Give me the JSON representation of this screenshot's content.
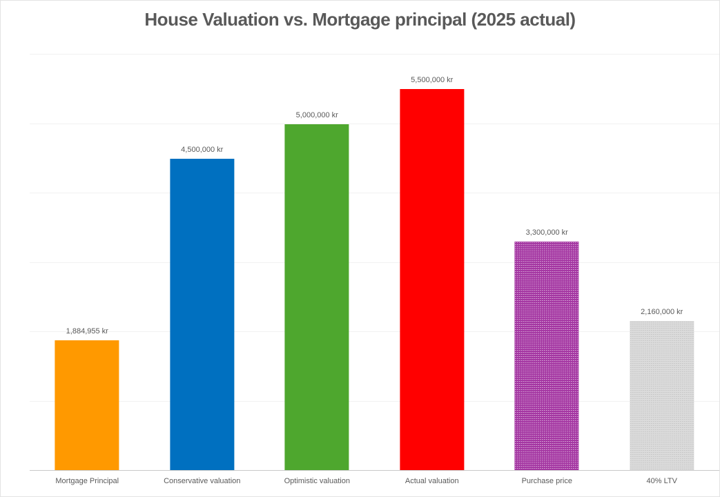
{
  "chart_data": {
    "type": "bar",
    "title": "House Valuation vs. Mortgage principal (2025 actual)",
    "categories": [
      "Mortgage Principal",
      "Conservative valuation",
      "Optimistic valuation",
      "Actual valuation",
      "Purchase price",
      "40% LTV"
    ],
    "values": [
      1884955,
      4500000,
      5000000,
      5500000,
      3300000,
      2160000
    ],
    "data_labels": [
      "1,884,955 kr",
      "4,500,000 kr",
      "5,000,000 kr",
      "5,500,000 kr",
      "3,300,000 kr",
      "2,160,000 kr"
    ],
    "bar_colors": [
      "#FF9900",
      "#0070C0",
      "#4EA72E",
      "#FF0000",
      "#A436A2",
      "#DBDBDB"
    ],
    "bar_patterns": [
      "solid",
      "solid",
      "solid",
      "solid",
      "dots-white",
      "dots-gray"
    ],
    "unit": "kr",
    "xlabel": "",
    "ylabel": "",
    "ylim": [
      0,
      6000000
    ],
    "gridline_step": 1000000,
    "grid": true,
    "legend": false,
    "y_axis_tick_labels_visible": false
  },
  "colors": {
    "title_text": "#595959",
    "label_text": "#595959",
    "gridline": "#F1F1F1",
    "axis_line": "#C9C9C9",
    "background": "#FFFFFF"
  }
}
